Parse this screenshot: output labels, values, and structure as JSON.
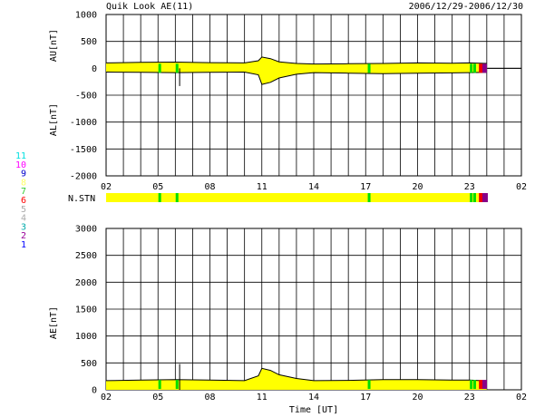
{
  "header": {
    "title": "Quik Look AE(11)",
    "date_range": "2006/12/29-2006/12/30"
  },
  "station_legend": {
    "title": "N.STN",
    "entries": [
      {
        "label": "11",
        "color": "#00e0e0"
      },
      {
        "label": "10",
        "color": "#ff00ff"
      },
      {
        "label": "9",
        "color": "#0000cc"
      },
      {
        "label": "8",
        "color": "#ffff66"
      },
      {
        "label": "7",
        "color": "#33cc33"
      },
      {
        "label": "6",
        "color": "#ff0000"
      },
      {
        "label": "5",
        "color": "#aaaaaa"
      },
      {
        "label": "4",
        "color": "#aaaaaa"
      },
      {
        "label": "3",
        "color": "#00aaaa"
      },
      {
        "label": "2",
        "color": "#990099"
      },
      {
        "label": "1",
        "color": "#0000ff"
      }
    ]
  },
  "colors": {
    "fill": "#ffff00",
    "green": "#00dd00",
    "red": "#ee0000",
    "purple": "#880088",
    "line": "#000000"
  },
  "chart_data": [
    {
      "type": "area",
      "panel": "upper",
      "ylabel_top": "AU[nT]",
      "ylabel_bottom": "AL[nT]",
      "ylim": [
        -2000,
        1000
      ],
      "yticks": [
        1000,
        500,
        0,
        -500,
        -1000,
        -1500,
        -2000
      ],
      "xlim_hours": [
        2,
        26
      ],
      "xticks": [
        "02",
        "05",
        "08",
        "11",
        "14",
        "17",
        "20",
        "23",
        "02"
      ],
      "x_tick_hours": [
        2,
        5,
        8,
        11,
        14,
        17,
        20,
        23,
        26
      ],
      "data_end_hour": 24.05,
      "series": [
        {
          "name": "AU",
          "x": [
            2,
            4,
            6,
            8,
            10,
            10.8,
            11,
            11.5,
            12,
            13,
            14,
            16,
            18,
            20,
            22,
            23,
            24
          ],
          "values": [
            100,
            110,
            115,
            105,
            100,
            140,
            210,
            180,
            120,
            90,
            80,
            85,
            90,
            100,
            95,
            100,
            90
          ]
        },
        {
          "name": "AL",
          "x": [
            2,
            4,
            6,
            8,
            10,
            10.8,
            11,
            11.5,
            12,
            13,
            14,
            16,
            18,
            20,
            22,
            23,
            24
          ],
          "values": [
            -70,
            -75,
            -80,
            -75,
            -70,
            -120,
            -300,
            -260,
            -180,
            -110,
            -80,
            -90,
            -100,
            -90,
            -85,
            -80,
            -75
          ]
        }
      ],
      "spikes": [
        {
          "x": 6.25,
          "values": [
            -330,
            0
          ]
        }
      ]
    },
    {
      "type": "area",
      "panel": "lower",
      "ylabel": "AE[nT]",
      "xlabel": "Time [UT]",
      "ylim": [
        0,
        3000
      ],
      "yticks": [
        3000,
        2500,
        2000,
        1500,
        1000,
        500,
        0
      ],
      "xlim_hours": [
        2,
        26
      ],
      "xticks": [
        "02",
        "05",
        "08",
        "11",
        "14",
        "17",
        "20",
        "23",
        "02"
      ],
      "x_tick_hours": [
        2,
        5,
        8,
        11,
        14,
        17,
        20,
        23,
        26
      ],
      "data_end_hour": 24.05,
      "series": [
        {
          "name": "AE",
          "x": [
            2,
            4,
            6,
            8,
            10,
            10.8,
            11,
            11.5,
            12,
            13,
            14,
            16,
            18,
            20,
            22,
            23,
            24
          ],
          "values": [
            170,
            180,
            190,
            180,
            170,
            260,
            400,
            360,
            280,
            210,
            170,
            175,
            190,
            190,
            180,
            180,
            165
          ]
        }
      ],
      "spikes": [
        {
          "x": 6.25,
          "values": [
            0,
            480
          ]
        }
      ]
    }
  ],
  "station_bar": {
    "green_hours": [
      5.1,
      6.1,
      17.2,
      23.1,
      23.3
    ],
    "red_hour": 23.65,
    "purple_hour": 23.85
  }
}
